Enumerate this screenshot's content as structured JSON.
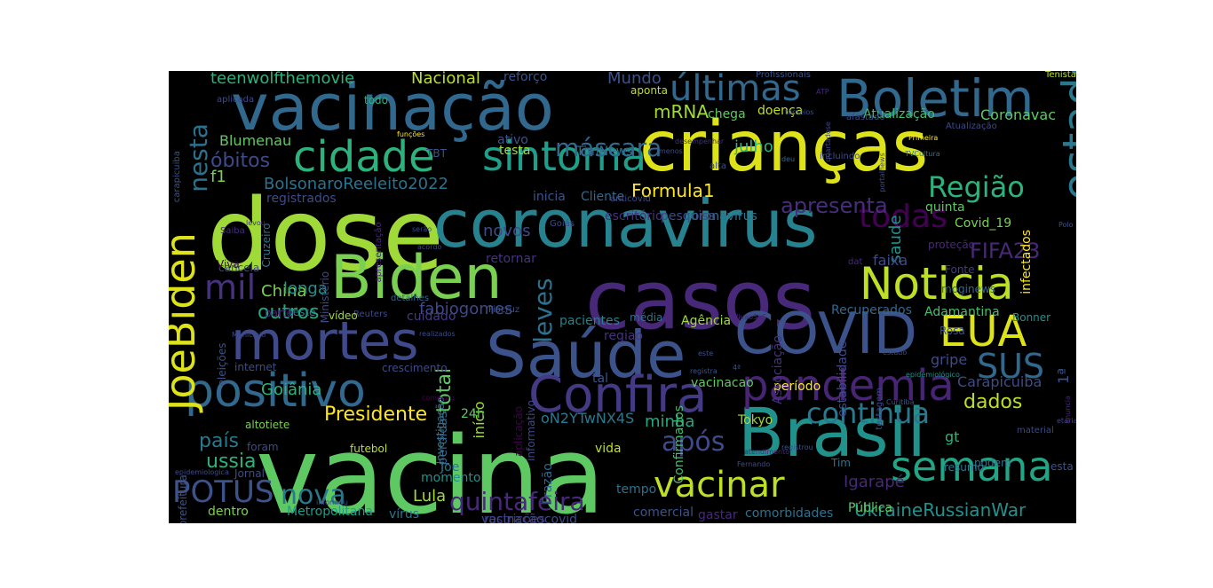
{
  "cloud": {
    "background": "#000000",
    "colormap": "viridis",
    "words": [
      {
        "text": "vacina",
        "color": "#5ec962"
      },
      {
        "text": "casos",
        "color": "#482878"
      },
      {
        "text": "Saúde",
        "color": "#3b528b"
      },
      {
        "text": "dose",
        "color": "#a0da39"
      },
      {
        "text": "Brasil",
        "color": "#21918c"
      },
      {
        "text": "coronavirus",
        "color": "#26828e"
      },
      {
        "text": "vacinação",
        "color": "#31688e"
      },
      {
        "text": "crianças",
        "color": "#dde318"
      },
      {
        "text": "COVID",
        "color": "#3b528b"
      },
      {
        "text": "Biden",
        "color": "#7ad151"
      },
      {
        "text": "mortes",
        "color": "#3e4a89"
      },
      {
        "text": "Boletim",
        "color": "#31688e"
      },
      {
        "text": "Noticia",
        "color": "#bddf26"
      },
      {
        "text": "positivo",
        "color": "#31688e"
      },
      {
        "text": "Confira",
        "color": "#443983"
      },
      {
        "text": "pandemia",
        "color": "#482475"
      },
      {
        "text": "semana",
        "color": "#21a585"
      },
      {
        "text": "cidade",
        "color": "#2db27d"
      },
      {
        "text": "sintoma",
        "color": "#1f9e89"
      },
      {
        "text": "últimas",
        "color": "#31688e"
      },
      {
        "text": "EUA",
        "color": "#dde318"
      },
      {
        "text": "estado",
        "color": "#2a788e"
      },
      {
        "text": "Ukraine",
        "color": "#1f9e89"
      },
      {
        "text": "JoeBiden",
        "color": "#dde318"
      },
      {
        "text": "vacinar",
        "color": "#bddf26"
      },
      {
        "text": "continua",
        "color": "#2a788e"
      },
      {
        "text": "SUS",
        "color": "#31688e"
      },
      {
        "text": "todas",
        "color": "#440154"
      },
      {
        "text": "Região",
        "color": "#2db27d"
      },
      {
        "text": "mil",
        "color": "#46327e"
      },
      {
        "text": "POTUS",
        "color": "#3b528b"
      },
      {
        "text": "quintafeira",
        "color": "#482878"
      },
      {
        "text": "após",
        "color": "#3e4a89"
      },
      {
        "text": "Presidente",
        "color": "#fde725"
      },
      {
        "text": "nova",
        "color": "#2a788e"
      },
      {
        "text": "FIFA23",
        "color": "#482878"
      },
      {
        "text": "apresenta",
        "color": "#472d7b"
      },
      {
        "text": "nesta",
        "color": "#2c728e"
      },
      {
        "text": "óbitos",
        "color": "#3e4a89"
      },
      {
        "text": "leves",
        "color": "#2c728e"
      },
      {
        "text": "máscara",
        "color": "#31688e"
      },
      {
        "text": "outros",
        "color": "#22a884"
      },
      {
        "text": "UkraineRussianWar",
        "color": "#21918c"
      },
      {
        "text": "Formula1",
        "color": "#fde725"
      },
      {
        "text": "país",
        "color": "#2a788e"
      },
      {
        "text": "ussia",
        "color": "#2db27d"
      },
      {
        "text": "dados",
        "color": "#bddf26"
      },
      {
        "text": "mRNA",
        "color": "#a0da39"
      },
      {
        "text": "teenwolfthemovie",
        "color": "#2db27d"
      },
      {
        "text": "Nacional",
        "color": "#bddf26"
      },
      {
        "text": "Mundo",
        "color": "#3b528b"
      },
      {
        "text": "BolsonaroReeleito2022",
        "color": "#2c728e"
      },
      {
        "text": "novos",
        "color": "#3e4a89"
      },
      {
        "text": "total",
        "color": "#5ec962"
      },
      {
        "text": "Lula",
        "color": "#a0da39"
      },
      {
        "text": "Igarapé",
        "color": "#482878"
      },
      {
        "text": "fabiogomes",
        "color": "#3e4a89"
      },
      {
        "text": "China",
        "color": "#7ad151"
      },
      {
        "text": "longa",
        "color": "#21918c"
      },
      {
        "text": "Goiânia",
        "color": "#2db27d"
      },
      {
        "text": "Coronavac",
        "color": "#5ec962"
      },
      {
        "text": "saude",
        "color": "#21918c"
      },
      {
        "text": "Carapicuiba",
        "color": "#3e4a89"
      },
      {
        "text": "julho",
        "color": "#2db27d"
      },
      {
        "text": "minha",
        "color": "#22a884"
      },
      {
        "text": "início",
        "color": "#a0da39"
      },
      {
        "text": "gripe",
        "color": "#3e4a89"
      },
      {
        "text": "faixa",
        "color": "#3e4a89"
      },
      {
        "text": "Blumenau",
        "color": "#5ec962"
      },
      {
        "text": "f1",
        "color": "#7ad151"
      },
      {
        "text": "Recuperados",
        "color": "#31688e"
      },
      {
        "text": "Adamantina",
        "color": "#44bf70"
      },
      {
        "text": "1ª",
        "color": "#3b528b"
      },
      {
        "text": "gt",
        "color": "#2db27d"
      },
      {
        "text": "Metropolitana",
        "color": "#1f9e89"
      },
      {
        "text": "dentro",
        "color": "#7ad151"
      },
      {
        "text": "oN2YTwNX4S",
        "color": "#2a788e"
      },
      {
        "text": "reforço",
        "color": "#3b528b"
      },
      {
        "text": "doença",
        "color": "#c2df23"
      },
      {
        "text": "chega",
        "color": "#5ec962"
      },
      {
        "text": "Atualização",
        "color": "#44bf70"
      },
      {
        "text": "escritório",
        "color": "#46327e"
      },
      {
        "text": "coronavirus",
        "color": "#2c728e"
      },
      {
        "text": "Agência",
        "color": "#a0da39"
      },
      {
        "text": "regiao",
        "color": "#46327e"
      },
      {
        "text": "pacientes",
        "color": "#26828e"
      },
      {
        "text": "ativo",
        "color": "#3b528b"
      },
      {
        "text": "testa",
        "color": "#a0da39"
      },
      {
        "text": "TimNews",
        "color": "#2c728e"
      },
      {
        "text": "inicia",
        "color": "#3b528b"
      },
      {
        "text": "Cliente",
        "color": "#31688e"
      },
      {
        "text": "registrados",
        "color": "#3e4a89"
      },
      {
        "text": "Covid_19",
        "color": "#7ad151"
      },
      {
        "text": "infectados",
        "color": "#fde725"
      },
      {
        "text": "quinta",
        "color": "#5ec962"
      },
      {
        "text": "pesquisa",
        "color": "#3e4a89"
      },
      {
        "text": "retornar",
        "color": "#46327e"
      },
      {
        "text": "cuidado",
        "color": "#443983"
      },
      {
        "text": "24h",
        "color": "#5ec962"
      },
      {
        "text": "perdidas",
        "color": "#31688e"
      },
      {
        "text": "vida",
        "color": "#bddf26"
      },
      {
        "text": "Joe",
        "color": "#2a788e"
      },
      {
        "text": "momento",
        "color": "#21918c"
      },
      {
        "text": "futebol",
        "color": "#bddf26"
      },
      {
        "text": "Jornal",
        "color": "#3e4a89"
      },
      {
        "text": "vírus",
        "color": "#2a788e"
      },
      {
        "text": "restrições",
        "color": "#46327e"
      },
      {
        "text": "vacinaçãocovid",
        "color": "#3e4a89"
      },
      {
        "text": "comercial",
        "color": "#3b528b"
      },
      {
        "text": "gastar",
        "color": "#482878"
      },
      {
        "text": "comorbidades",
        "color": "#2c728e"
      },
      {
        "text": "tempo",
        "color": "#2c728e"
      },
      {
        "text": "Frazão",
        "color": "#31688e"
      },
      {
        "text": "período",
        "color": "#fde725"
      },
      {
        "text": "Tokyo",
        "color": "#a0da39"
      },
      {
        "text": "vacinacao",
        "color": "#5ec962"
      },
      {
        "text": "tal",
        "color": "#3b528b"
      },
      {
        "text": "Confirmados",
        "color": "#44bf70"
      },
      {
        "text": "podem",
        "color": "#2c728e"
      },
      {
        "text": "resumo",
        "color": "#2a788e"
      },
      {
        "text": "Pública",
        "color": "#5ec962"
      },
      {
        "text": "Tim",
        "color": "#2c728e"
      },
      {
        "text": "esta",
        "color": "#3b528b"
      },
      {
        "text": "Bonner",
        "color": "#21918c"
      },
      {
        "text": "Rosa",
        "color": "#3b528b"
      },
      {
        "text": "estabilidade",
        "color": "#3e4a89"
      },
      {
        "text": "Associação",
        "color": "#46327e"
      },
      {
        "text": "média",
        "color": "#2c728e"
      },
      {
        "text": "VivaoSuS",
        "color": "#482878"
      },
      {
        "text": "moginews",
        "color": "#31688e"
      },
      {
        "text": "Fonte",
        "color": "#443983"
      },
      {
        "text": "proteção",
        "color": "#482878"
      },
      {
        "text": "dat",
        "color": "#482878"
      },
      {
        "text": "Fiocruz",
        "color": "#3b528b"
      },
      {
        "text": "Reuters",
        "color": "#3e4a89"
      },
      {
        "text": "detalhes",
        "color": "#31688e"
      },
      {
        "text": "vídeo",
        "color": "#a0da39"
      },
      {
        "text": "teste",
        "color": "#26828e"
      },
      {
        "text": "parte",
        "color": "#482878"
      },
      {
        "text": "cancela",
        "color": "#3e4a89"
      },
      {
        "text": "Viva",
        "color": "#440154"
      },
      {
        "text": "Saiba",
        "color": "#472d7b"
      },
      {
        "text": "Ministério",
        "color": "#3e4a89"
      },
      {
        "text": "Cruzeiro",
        "color": "#2c728e"
      },
      {
        "text": "eleições",
        "color": "#3b528b"
      },
      {
        "text": "internet",
        "color": "#3e4a89"
      },
      {
        "text": "crescimento",
        "color": "#3e4a89"
      },
      {
        "text": "prefeitura",
        "color": "#3b528b"
      },
      {
        "text": "altotiete",
        "color": "#7ad151"
      },
      {
        "text": "foram",
        "color": "#3e4a89"
      },
      {
        "text": "Investigação",
        "color": "#2c728e"
      },
      {
        "text": "informativo",
        "color": "#3e4a89"
      },
      {
        "text": "aplicação",
        "color": "#440154"
      },
      {
        "text": "todo",
        "color": "#2db27d"
      },
      {
        "text": "aplicada",
        "color": "#3e4a89"
      },
      {
        "text": "TBT",
        "color": "#3b528b"
      },
      {
        "text": "funções",
        "color": "#fde725"
      },
      {
        "text": "Goiás",
        "color": "#3e4a89"
      },
      {
        "text": "anticovid",
        "color": "#3e4a89"
      },
      {
        "text": "aponta",
        "color": "#bddf26"
      },
      {
        "text": "Profissionais",
        "color": "#3b528b"
      },
      {
        "text": "ATP",
        "color": "#482878"
      },
      {
        "text": "torneios",
        "color": "#3b528b"
      },
      {
        "text": "menos",
        "color": "#3e4a89"
      },
      {
        "text": "desempenhar",
        "color": "#46327e"
      },
      {
        "text": "alta",
        "color": "#3b528b"
      },
      {
        "text": "deu",
        "color": "#31688e"
      },
      {
        "text": "incluindo",
        "color": "#3e4a89"
      },
      {
        "text": "quartadose",
        "color": "#3e4a89"
      },
      {
        "text": "portalnews",
        "color": "#3e4a89"
      },
      {
        "text": "TVCultura",
        "color": "#2c728e"
      },
      {
        "text": "Primeira",
        "color": "#fde725"
      },
      {
        "text": "afastado",
        "color": "#3e4a89"
      },
      {
        "text": "Tenistas",
        "color": "#bddf26"
      },
      {
        "text": "carapicuiba",
        "color": "#3b528b"
      },
      {
        "text": "Polo",
        "color": "#3b528b"
      },
      {
        "text": "levou",
        "color": "#46327e"
      },
      {
        "text": "serão",
        "color": "#3e4a89"
      },
      {
        "text": "apresentação",
        "color": "#482878"
      },
      {
        "text": "acordo",
        "color": "#3e4a89"
      },
      {
        "text": "realizados",
        "color": "#3e4a89"
      },
      {
        "text": "Município",
        "color": "#3e4a89"
      },
      {
        "text": "registra",
        "color": "#3b528b"
      },
      {
        "text": "este",
        "color": "#3b528b"
      },
      {
        "text": "epidemiológico",
        "color": "#21918c"
      },
      {
        "text": "testagem",
        "color": "#3e4a89"
      },
      {
        "text": "Curitiba",
        "color": "#3b528b"
      },
      {
        "text": "material",
        "color": "#3e4a89"
      },
      {
        "text": "etaria",
        "color": "#3e4a89"
      },
      {
        "text": "anuncia",
        "color": "#482878"
      },
      {
        "text": "registrou",
        "color": "#3b528b"
      },
      {
        "text": "atendimento",
        "color": "#482878"
      },
      {
        "text": "Fernando",
        "color": "#3e4a89"
      },
      {
        "text": "estudo",
        "color": "#3e4a89"
      },
      {
        "text": "4ª",
        "color": "#3b528b"
      },
      {
        "text": "começou",
        "color": "#440154"
      },
      {
        "text": "epidemiologica",
        "color": "#3e4a89"
      },
      {
        "text": "informou",
        "color": "#3e4a89"
      },
      {
        "text": "Atualização",
        "color": "#3e4a89"
      }
    ]
  }
}
